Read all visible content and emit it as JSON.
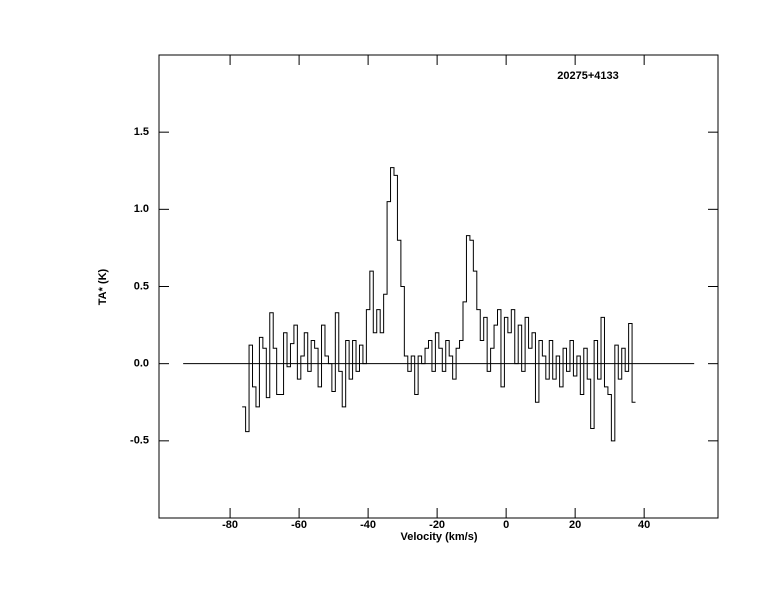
{
  "chart_data": {
    "type": "step",
    "annotation": "20275+4133",
    "xlabel": "Velocity (km/s)",
    "ylabel": "TA* (K)",
    "xlim": [
      -100.6,
      61.4
    ],
    "ylim": [
      -1.0,
      2.0
    ],
    "xticks": [
      -80,
      -60,
      -40,
      -20,
      0,
      20,
      40
    ],
    "yticks": [
      -0.5,
      {
        "value": 0,
        "label": "0.0"
      },
      0.5,
      {
        "value": 1,
        "label": "1.0"
      },
      1.5
    ],
    "color": "#000000",
    "hline": {
      "y": 0,
      "x": [
        -93.6,
        54.5
      ]
    },
    "x": [
      -76,
      -75,
      -74,
      -73,
      -72,
      -71,
      -70,
      -69,
      -68,
      -67,
      -66,
      -65,
      -64,
      -63,
      -62,
      -61,
      -60,
      -59,
      -58,
      -57,
      -56,
      -55,
      -54,
      -53,
      -52,
      -51,
      -50,
      -49,
      -48,
      -47,
      -46,
      -45,
      -44,
      -43,
      -42,
      -41,
      -40,
      -39,
      -38,
      -37,
      -36,
      -35,
      -34,
      -33,
      -32,
      -31,
      -30,
      -29,
      -28,
      -27,
      -26,
      -25,
      -24,
      -23,
      -22,
      -21,
      -20,
      -19,
      -18,
      -17,
      -16,
      -15,
      -14,
      -13,
      -12,
      -11,
      -10,
      -9,
      -8,
      -7,
      -6,
      -5,
      -4,
      -3,
      -2,
      -1,
      0,
      1,
      2,
      3,
      4,
      5,
      6,
      7,
      8,
      9,
      10,
      11,
      12,
      13,
      14,
      15,
      16,
      17,
      18,
      19,
      20,
      21,
      22,
      23,
      24,
      25,
      26,
      27,
      28,
      29,
      30,
      31,
      32,
      33,
      34,
      35,
      36,
      37
    ],
    "values": [
      -0.28,
      -0.44,
      0.12,
      -0.15,
      -0.28,
      0.17,
      0.1,
      -0.22,
      0.33,
      0.1,
      -0.2,
      -0.2,
      0.2,
      -0.02,
      0.13,
      0.25,
      -0.1,
      0.05,
      0.2,
      -0.05,
      0.15,
      0.1,
      -0.15,
      0.25,
      0.05,
      0.0,
      -0.18,
      0.33,
      -0.05,
      -0.28,
      0.15,
      -0.1,
      0.15,
      -0.05,
      0.12,
      0.0,
      0.35,
      0.6,
      0.2,
      0.35,
      0.2,
      0.45,
      1.05,
      1.27,
      1.22,
      0.8,
      0.5,
      0.05,
      -0.05,
      0.05,
      -0.2,
      0.05,
      0.0,
      0.1,
      0.15,
      -0.05,
      0.2,
      0.1,
      -0.05,
      0.15,
      0.05,
      -0.1,
      0.1,
      0.15,
      0.4,
      0.83,
      0.8,
      0.6,
      0.35,
      0.15,
      0.3,
      -0.05,
      0.1,
      0.25,
      0.35,
      -0.15,
      0.3,
      0.2,
      0.35,
      0.0,
      0.25,
      -0.05,
      0.3,
      0.1,
      0.2,
      -0.25,
      0.15,
      0.05,
      -0.1,
      0.15,
      -0.1,
      0.05,
      -0.15,
      0.1,
      -0.05,
      0.15,
      -0.08,
      0.05,
      -0.2,
      0.1,
      -0.1,
      -0.42,
      0.15,
      -0.1,
      0.3,
      -0.15,
      -0.2,
      -0.5,
      0.12,
      -0.1,
      0.1,
      -0.05,
      0.26,
      -0.25
    ]
  }
}
